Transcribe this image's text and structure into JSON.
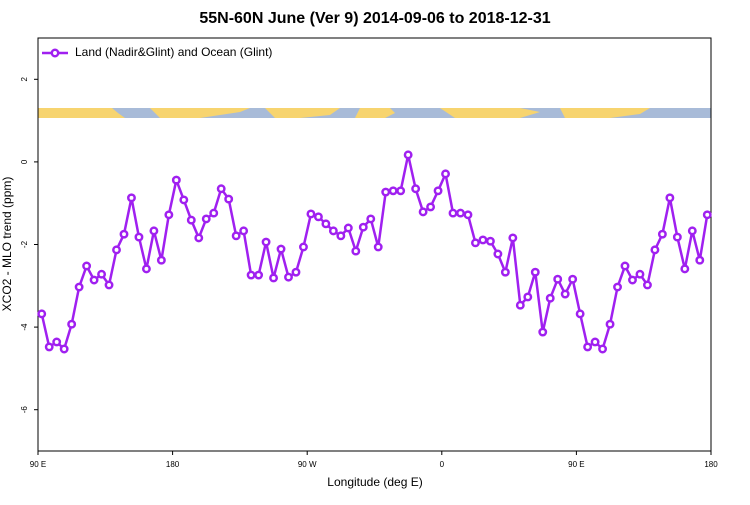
{
  "chart_data": {
    "type": "line",
    "title": "55N-60N June (Ver 9)   2014-09-06 to 2018-12-31",
    "x_label": "Longitude (deg E)",
    "y_label": "XCO2 - MLO trend (ppm)",
    "x": [
      92.5,
      97.5,
      102.5,
      107.5,
      112.5,
      117.5,
      122.5,
      127.5,
      132.5,
      137.5,
      142.5,
      147.5,
      152.5,
      157.5,
      162.5,
      167.5,
      172.5,
      177.5,
      182.5,
      187.5,
      192.5,
      197.5,
      202.5,
      207.5,
      212.5,
      217.5,
      222.5,
      227.5,
      232.5,
      237.5,
      242.5,
      247.5,
      252.5,
      257.5,
      262.5,
      267.5,
      272.5,
      277.5,
      282.5,
      287.5,
      292.5,
      297.5,
      302.5,
      307.5,
      312.5,
      317.5,
      322.5,
      327.5,
      332.5,
      337.5,
      342.5,
      347.5,
      352.5,
      357.5,
      362.5,
      367.5,
      372.5,
      377.5,
      382.5,
      387.5,
      392.5,
      397.5,
      402.5,
      407.5,
      412.5,
      417.5,
      422.5,
      427.5,
      432.5,
      437.5,
      442.5,
      447.5,
      452.5,
      457.5,
      462.5,
      467.5,
      472.5,
      477.5,
      482.5,
      487.5,
      492.5,
      497.5,
      502.5,
      507.5,
      512.5,
      517.5,
      522.5,
      527.5,
      532.5,
      537.5
    ],
    "series": [
      {
        "name": "Land (Nadir&Glint) and Ocean (Glint)",
        "color": "#a020f0",
        "values": [
          -3.68,
          -4.48,
          -4.36,
          -4.53,
          -3.93,
          -3.03,
          -2.52,
          -2.86,
          -2.72,
          -2.98,
          -2.13,
          -1.75,
          -0.87,
          -1.82,
          -2.59,
          -1.67,
          -2.38,
          -1.28,
          -0.44,
          -0.92,
          -1.41,
          -1.84,
          -1.38,
          -1.24,
          -0.65,
          -0.9,
          -1.79,
          -1.67,
          -2.74,
          -2.74,
          -1.94,
          -2.81,
          -2.11,
          -2.79,
          -2.67,
          -2.06,
          -1.26,
          -1.33,
          -1.5,
          -1.67,
          -1.79,
          -1.6,
          -2.16,
          -1.58,
          -1.38,
          -2.06,
          -0.73,
          -0.7,
          -0.7,
          0.17,
          -0.65,
          -1.21,
          -1.09,
          -0.7,
          -0.29,
          -1.24,
          -1.24,
          -1.28,
          -1.96,
          -1.89,
          -1.92,
          -2.23,
          -2.67,
          -1.84,
          -3.47,
          -3.27,
          -2.67,
          -4.12,
          -3.3,
          -2.84,
          -3.2,
          -2.84,
          -3.68,
          -4.48,
          -4.36,
          -4.53,
          -3.93,
          -3.03,
          -2.52,
          -2.86,
          -2.72,
          -2.98,
          -2.13,
          -1.75,
          -0.87,
          -1.82,
          -2.59,
          -1.67,
          -2.38,
          -1.28
        ]
      }
    ],
    "xlim": [
      90,
      540
    ],
    "xticks": [
      {
        "value": 90,
        "label": "90 E"
      },
      180,
      {
        "value": 270,
        "label": "90 W"
      },
      {
        "value": 360,
        "label": "0"
      },
      {
        "value": 450,
        "label": "90 E"
      },
      {
        "value": 540,
        "label": "180"
      }
    ],
    "ylim": [
      -7,
      3
    ],
    "yticks": [
      2,
      0,
      -2,
      -4,
      -6
    ],
    "legend": "top-left"
  }
}
